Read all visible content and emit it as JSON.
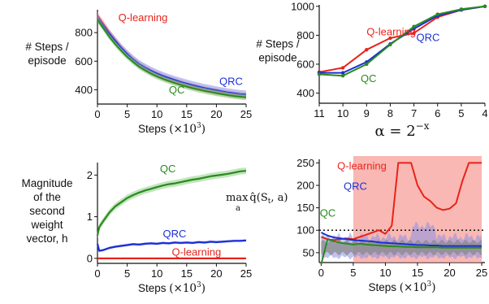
{
  "colors": {
    "qlearning": "#e8231b",
    "qrc": "#1c2fd6",
    "qc": "#2a8a1e",
    "band_red": "#f7a09a",
    "band_blue": "#8a8fe6",
    "band_green": "#8fcf86",
    "grey": "#8a8a8a"
  },
  "chart_data": [
    {
      "type": "line",
      "ylabel_lines": [
        "# Steps /",
        "episode"
      ],
      "xlabel": "Steps",
      "xlabel_mult": "(×10",
      "xlabel_exp": "3",
      "xlabel_close": ")",
      "xlim": [
        0,
        25
      ],
      "ylim": [
        300,
        960
      ],
      "xticks": [
        "0",
        "5",
        "10",
        "15",
        "20",
        "25"
      ],
      "xtick_values": [
        0,
        5,
        10,
        15,
        20,
        25
      ],
      "yticks": [
        "400",
        "600",
        "800"
      ],
      "ytick_values": [
        400,
        600,
        800
      ],
      "x": [
        0,
        1,
        2,
        3,
        4,
        5,
        6,
        7,
        8,
        9,
        10,
        11,
        12,
        13,
        14,
        15,
        16,
        17,
        18,
        19,
        20,
        21,
        22,
        23,
        24,
        25
      ],
      "series": [
        {
          "name": "Q-learning",
          "color": "qlearning",
          "values": [
            920,
            860,
            800,
            745,
            695,
            650,
            610,
            575,
            548,
            525,
            505,
            488,
            472,
            458,
            445,
            432,
            420,
            410,
            400,
            392,
            384,
            377,
            370,
            364,
            359,
            354
          ],
          "band": 25
        },
        {
          "name": "QRC",
          "color": "qrc",
          "values": [
            900,
            845,
            790,
            740,
            692,
            650,
            612,
            580,
            555,
            533,
            514,
            497,
            482,
            468,
            455,
            443,
            432,
            422,
            412,
            404,
            396,
            388,
            381,
            375,
            370,
            366
          ],
          "band": 28
        },
        {
          "name": "QC",
          "color": "qc",
          "values": [
            890,
            830,
            770,
            718,
            672,
            630,
            594,
            562,
            536,
            513,
            493,
            476,
            461,
            447,
            434,
            422,
            411,
            401,
            392,
            384,
            376,
            369,
            362,
            356,
            351,
            347
          ],
          "band": 20
        }
      ],
      "labels": [
        {
          "text": "Q-learning",
          "color": "qlearning",
          "x": 3.5,
          "y": 880
        },
        {
          "text": "QRC",
          "color": "qrc",
          "x": 20.5,
          "y": 435
        },
        {
          "text": "QC",
          "color": "qc",
          "x": 12,
          "y": 375
        }
      ]
    },
    {
      "type": "line",
      "ylabel_lines": [
        "# Steps /",
        "episode"
      ],
      "xlabel_alpha": "α = 2",
      "xlabel_exp": "−x",
      "xlim": [
        11,
        4
      ],
      "ylim": [
        330,
        1010
      ],
      "xticks": [
        "11",
        "10",
        "9",
        "8",
        "7",
        "6",
        "5",
        "4"
      ],
      "xtick_values": [
        11,
        10,
        9,
        8,
        7,
        6,
        5,
        4
      ],
      "yticks": [
        "400",
        "600",
        "800",
        "1000"
      ],
      "ytick_values": [
        400,
        600,
        800,
        1000
      ],
      "x": [
        11,
        10,
        9,
        8,
        7,
        6,
        5,
        4
      ],
      "series": [
        {
          "name": "Q-learning",
          "color": "qlearning",
          "values": [
            545,
            575,
            700,
            780,
            815,
            925,
            975,
            1000
          ]
        },
        {
          "name": "QRC",
          "color": "qrc",
          "values": [
            540,
            540,
            615,
            740,
            845,
            935,
            975,
            1000
          ]
        },
        {
          "name": "QC",
          "color": "qc",
          "values": [
            530,
            520,
            600,
            735,
            860,
            945,
            980,
            1000
          ]
        }
      ],
      "labels": [
        {
          "text": "Q-learning",
          "color": "qlearning",
          "x": 9.0,
          "y": 800
        },
        {
          "text": "QRC",
          "color": "qrc",
          "x": 6.9,
          "y": 760
        },
        {
          "text": "QC",
          "color": "qc",
          "x": 9.25,
          "y": 475
        }
      ]
    },
    {
      "type": "line",
      "ylabel_lines": [
        "Magnitude",
        "of the",
        "second",
        "weight",
        "vector, h"
      ],
      "xlabel": "Steps",
      "xlabel_mult": "(×10",
      "xlabel_exp": "3",
      "xlabel_close": ")",
      "xlim": [
        0,
        25
      ],
      "ylim": [
        -0.12,
        2.3
      ],
      "xticks": [
        "0",
        "5",
        "10",
        "15",
        "20",
        "25"
      ],
      "xtick_values": [
        0,
        5,
        10,
        15,
        20,
        25
      ],
      "yticks": [
        "0",
        "1",
        "2"
      ],
      "ytick_values": [
        0,
        1,
        2
      ],
      "x": [
        0,
        0.3,
        1,
        2,
        3,
        4,
        5,
        6,
        7,
        8,
        9,
        10,
        11,
        12,
        13,
        14,
        15,
        16,
        17,
        18,
        19,
        20,
        21,
        22,
        23,
        24,
        25
      ],
      "series": [
        {
          "name": "QC",
          "color": "qc",
          "values": [
            0.55,
            0.75,
            0.9,
            1.1,
            1.25,
            1.35,
            1.45,
            1.52,
            1.58,
            1.63,
            1.67,
            1.71,
            1.75,
            1.78,
            1.8,
            1.83,
            1.86,
            1.89,
            1.91,
            1.94,
            1.97,
            1.99,
            2.01,
            2.03,
            2.06,
            2.09,
            2.1
          ],
          "band": 0.08
        },
        {
          "name": "QRC",
          "color": "qrc",
          "values": [
            0.35,
            0.18,
            0.2,
            0.25,
            0.28,
            0.3,
            0.32,
            0.34,
            0.33,
            0.35,
            0.36,
            0.35,
            0.37,
            0.36,
            0.38,
            0.37,
            0.38,
            0.37,
            0.39,
            0.38,
            0.4,
            0.39,
            0.4,
            0.41,
            0.42,
            0.42,
            0.43
          ],
          "band": 0.03
        },
        {
          "name": "Q-learning",
          "color": "qlearning",
          "values": [
            0,
            0,
            0,
            0,
            0,
            0,
            0,
            0,
            0,
            0,
            0,
            0,
            0,
            0,
            0,
            0,
            0,
            0,
            0,
            0,
            0,
            0,
            0,
            0,
            0,
            0,
            0
          ]
        }
      ],
      "labels": [
        {
          "text": "QC",
          "color": "qc",
          "x": 10.5,
          "y": 2.07
        },
        {
          "text": "QRC",
          "color": "qrc",
          "x": 11.0,
          "y": 0.5
        },
        {
          "text": "Q-learning",
          "color": "qlearning",
          "x": 12.5,
          "y": 0.07
        }
      ]
    },
    {
      "type": "line",
      "ylabel_math": "max",
      "ylabel_math_sub": "a",
      "ylabel_math_rest": "q̂(S",
      "ylabel_math_t": "t",
      "ylabel_math_end": ", a)",
      "xlabel": "Steps",
      "xlabel_mult": "(×10",
      "xlabel_exp": "3",
      "xlabel_close": ")",
      "xlim": [
        -0.3,
        25.5
      ],
      "ylim": [
        28,
        258
      ],
      "xticks": [
        "0",
        "5",
        "10",
        "15",
        "20",
        "25"
      ],
      "xtick_values": [
        0,
        5,
        10,
        15,
        20,
        25
      ],
      "yticks": [
        "50",
        "100",
        "150",
        "200",
        "250"
      ],
      "ytick_values": [
        50,
        100,
        150,
        200,
        250
      ],
      "reference_line": 100,
      "x": [
        0,
        1,
        2,
        3,
        4,
        5,
        6,
        7,
        8,
        9,
        10,
        11,
        12,
        13,
        14,
        15,
        16,
        17,
        18,
        19,
        20,
        21,
        22,
        23,
        24,
        25
      ],
      "series": [
        {
          "name": "Q-learning",
          "color": "qlearning",
          "values": [
            85,
            80,
            78,
            80,
            82,
            80,
            85,
            90,
            95,
            100,
            92,
            110,
            250,
            250,
            250,
            200,
            175,
            165,
            150,
            145,
            148,
            160,
            210,
            250,
            250,
            250
          ]
        },
        {
          "name": "QRC",
          "color": "qrc",
          "values": [
            95,
            88,
            84,
            82,
            80,
            78,
            77,
            76,
            75,
            73,
            72,
            71,
            70,
            69,
            68,
            67,
            67,
            66,
            66,
            65,
            65,
            65,
            65,
            65,
            65,
            65
          ]
        },
        {
          "name": "QC",
          "color": "qc",
          "values": [
            0,
            80,
            75,
            72,
            70,
            68,
            70,
            68,
            67,
            66,
            65,
            64,
            64,
            63,
            63,
            62,
            62,
            62,
            62,
            61,
            61,
            61,
            61,
            61,
            61,
            61
          ]
        }
      ],
      "labels": [
        {
          "text": "Q-learning",
          "color": "qlearning",
          "x": 2.5,
          "y": 235
        },
        {
          "text": "QRC",
          "color": "qrc",
          "x": 3.5,
          "y": 190
        },
        {
          "text": "QC",
          "color": "qc",
          "x": -0.2,
          "y": 130
        }
      ]
    }
  ]
}
